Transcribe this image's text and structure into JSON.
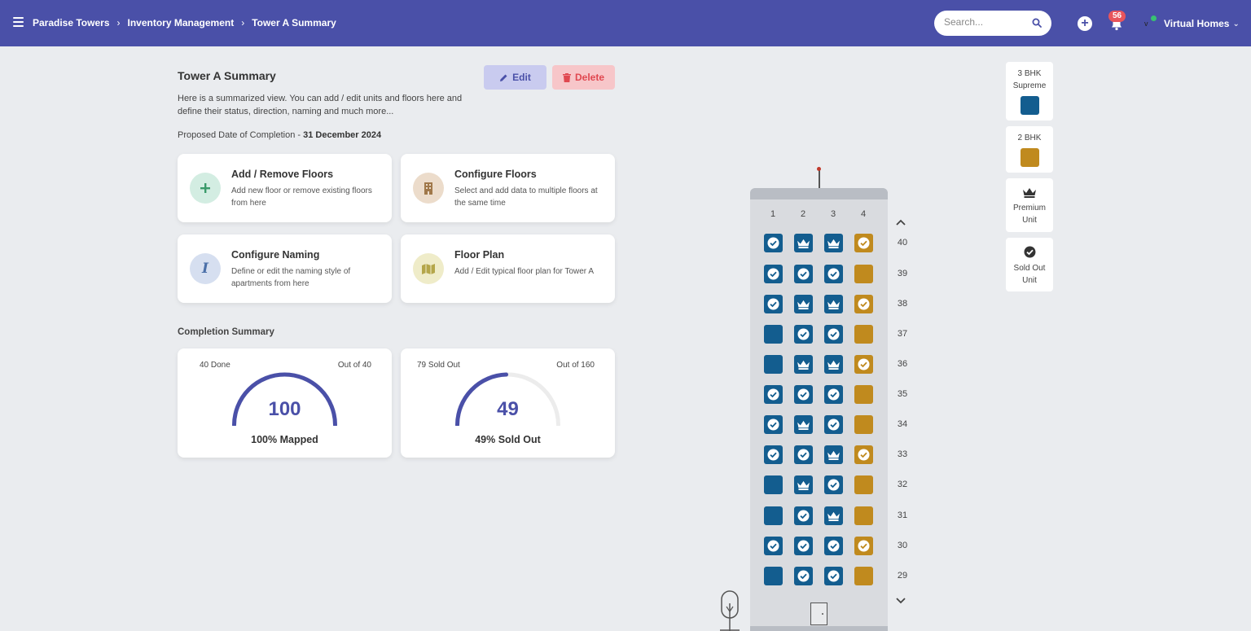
{
  "breadcrumb": {
    "items": [
      "Paradise Towers",
      "Inventory Management",
      "Tower A Summary"
    ],
    "separator": "›"
  },
  "search": {
    "placeholder": "Search..."
  },
  "header_actions": {
    "plus": "+",
    "notifications_count": "56",
    "logo_text": "v",
    "user_name": "Virtual Homes"
  },
  "page": {
    "title": "Tower A Summary",
    "description": "Here is a summarized view. You can add / edit units and floors here and define their status, direction, naming and much more...",
    "completion_label": "Proposed Date of Completion - ",
    "completion_date": "31 December 2024",
    "edit_label": "Edit",
    "delete_label": "Delete"
  },
  "actions": [
    {
      "title": "Add / Remove Floors",
      "desc": "Add new floor or remove existing floors from here",
      "icon": "plus-icon"
    },
    {
      "title": "Configure Floors",
      "desc": "Select and add data to multiple floors at the same time",
      "icon": "building-icon"
    },
    {
      "title": "Configure Naming",
      "desc": "Define or edit the naming style of apartments from here",
      "icon": "italic-icon"
    },
    {
      "title": "Floor Plan",
      "desc": "Add / Edit typical floor plan for Tower A",
      "icon": "map-icon"
    }
  ],
  "summary": {
    "label": "Completion Summary",
    "gauges": [
      {
        "left": "40 Done",
        "right": "Out of 40",
        "value": "100",
        "caption": "100% Mapped",
        "fraction": 1.0
      },
      {
        "left": "79 Sold Out",
        "right": "Out of 160",
        "value": "49",
        "caption": "49% Sold Out",
        "fraction": 0.49
      }
    ]
  },
  "tower": {
    "columns": [
      "1",
      "2",
      "3",
      "4"
    ],
    "floors": [
      {
        "num": "40",
        "units": [
          "sold",
          "premium",
          "premium",
          "sold"
        ]
      },
      {
        "num": "39",
        "units": [
          "sold",
          "sold",
          "sold",
          "empty"
        ]
      },
      {
        "num": "38",
        "units": [
          "sold",
          "premium",
          "premium",
          "sold"
        ]
      },
      {
        "num": "37",
        "units": [
          "empty",
          "sold",
          "sold",
          "empty"
        ]
      },
      {
        "num": "36",
        "units": [
          "empty",
          "premium",
          "premium",
          "sold"
        ]
      },
      {
        "num": "35",
        "units": [
          "sold",
          "sold",
          "sold",
          "empty"
        ]
      },
      {
        "num": "34",
        "units": [
          "sold",
          "premium",
          "sold",
          "empty"
        ]
      },
      {
        "num": "33",
        "units": [
          "sold",
          "sold",
          "premium",
          "sold"
        ]
      },
      {
        "num": "32",
        "units": [
          "empty",
          "premium",
          "sold",
          "empty"
        ]
      },
      {
        "num": "31",
        "units": [
          "empty",
          "sold",
          "premium",
          "empty"
        ]
      },
      {
        "num": "30",
        "units": [
          "sold",
          "sold",
          "sold",
          "sold"
        ]
      },
      {
        "num": "29",
        "units": [
          "empty",
          "sold",
          "sold",
          "empty"
        ]
      }
    ],
    "column_types": [
      "supreme",
      "supreme",
      "supreme",
      "bhk2"
    ]
  },
  "legend": [
    {
      "label1": "3 BHK",
      "label2": "Supreme",
      "kind": "swatch",
      "color": "#135d8f"
    },
    {
      "label1": "2 BHK",
      "label2": "",
      "kind": "swatch",
      "color": "#c08a1e"
    },
    {
      "label1": "Premium",
      "label2": "Unit",
      "kind": "crown-icon"
    },
    {
      "label1": "Sold Out",
      "label2": "Unit",
      "kind": "check-icon"
    }
  ],
  "colors": {
    "brand": "#4a50a8",
    "supreme": "#135d8f",
    "bhk2": "#c08a1e",
    "delete": "#e0474f"
  }
}
